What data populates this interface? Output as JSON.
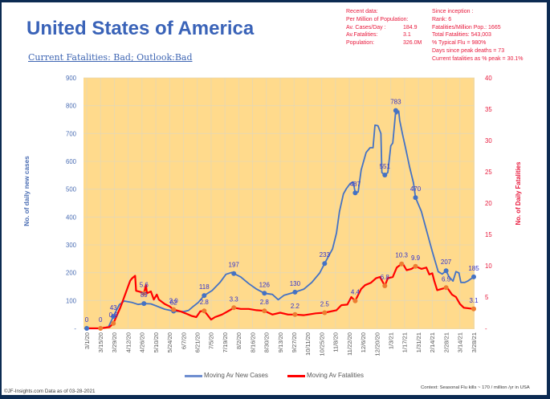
{
  "header": {
    "title": "United States of America",
    "subtitle": "Current Fatalities: Bad; Outlook:Bad"
  },
  "recent_data": {
    "heading": "Recent data:",
    "subheading": "Per Million of Population:",
    "rows": [
      {
        "label": "Av. Cases/Day :",
        "value": "184.9"
      },
      {
        "label": "Av.Fatalities:",
        "value": "3.1"
      },
      {
        "label": "Population:",
        "value": "326.0M"
      }
    ]
  },
  "since_inception": {
    "heading": "Since inception :",
    "lines": [
      "Rank: 6",
      "Fatalities/Million Pop.: 1665",
      "Total Fatalities: 543,003",
      "% Typical Flu = 980%",
      "Days since peak deaths = 73",
      "Current fatalities as % peak = 30.1%"
    ]
  },
  "footer": {
    "source": "©JF-Insights.com  Data as of 03-28-2021",
    "context": "Context: Seasonal Flu kills ~ 170 / million /yr in USA"
  },
  "colors": {
    "frame": "#0c2b52",
    "title": "#3a63b8",
    "info_text": "#e8193c",
    "data_label": "#3333cc"
  },
  "chart_data": {
    "type": "line",
    "title": "",
    "xlabel": "",
    "ylabel": "No. of daily new cases",
    "y2label": "No. of Daily Fatalities",
    "plot_background": "#FFDA8C",
    "grid": true,
    "x_range": [
      "3/1/20",
      "3/28/21"
    ],
    "ylim": [
      0,
      900
    ],
    "y2lim": [
      0,
      40
    ],
    "yticks": [
      0,
      100,
      200,
      300,
      400,
      500,
      600,
      700,
      800,
      900
    ],
    "ytick_labels": [
      "-",
      "100",
      "200",
      "300",
      "400",
      "500",
      "600",
      "700",
      "800",
      "900"
    ],
    "y2ticks": [
      0,
      5,
      10,
      15,
      20,
      25,
      30,
      35,
      40
    ],
    "y2tick_labels": [
      "-",
      "5",
      "10",
      "15",
      "20",
      "25",
      "30",
      "35",
      "40"
    ],
    "xticks": [
      "3/1/20",
      "3/15/20",
      "3/29/20",
      "4/12/20",
      "4/26/20",
      "5/10/20",
      "5/24/20",
      "6/7/20",
      "6/21/20",
      "7/5/20",
      "7/19/20",
      "8/2/20",
      "8/16/20",
      "8/30/20",
      "9/13/20",
      "9/27/20",
      "10/11/20",
      "10/25/20",
      "11/8/20",
      "11/22/20",
      "12/6/20",
      "12/20/20",
      "1/3/21",
      "1/17/21",
      "1/31/21",
      "2/14/21",
      "2/28/21",
      "3/14/21",
      "3/28/21"
    ],
    "legend": {
      "position": "bottom"
    },
    "series": [
      {
        "name": "Moving Av New Cases",
        "axis": "left",
        "color": "#4472C4",
        "marker_color": "#4472C4",
        "x": [
          "3/1/20",
          "3/15/20",
          "3/23/20",
          "3/28/20",
          "4/3/20",
          "4/8/20",
          "4/16/20",
          "4/22/20",
          "4/28/20",
          "5/5/20",
          "5/8/20",
          "5/19/20",
          "5/28/20",
          "6/7/20",
          "6/12/20",
          "6/17/20",
          "6/22/20",
          "6/28/20",
          "7/6/20",
          "7/14/20",
          "7/20/20",
          "7/26/20",
          "7/28/20",
          "8/4/20",
          "8/12/20",
          "8/20/20",
          "8/28/20",
          "9/5/20",
          "9/11/20",
          "9/17/20",
          "9/28/20",
          "10/7/20",
          "10/15/20",
          "10/23/20",
          "10/28/20",
          "11/5/20",
          "11/9/20",
          "11/12/20",
          "11/16/20",
          "11/19/20",
          "11/23/20",
          "11/26/20",
          "11/28/20",
          "12/1/20",
          "12/4/20",
          "12/9/20",
          "12/13/20",
          "12/16/20",
          "12/18/20",
          "12/21/20",
          "12/24/20",
          "12/25/20",
          "12/28/20",
          "12/31/20",
          "1/3/21",
          "1/5/21",
          "1/7/21",
          "1/8/21",
          "1/9/21",
          "1/11/21",
          "1/12/21",
          "1/15/21",
          "1/18/21",
          "1/22/21",
          "1/26/21",
          "1/28/21",
          "2/3/21",
          "2/11/21",
          "2/14/21",
          "2/18/21",
          "2/20/21",
          "2/24/21",
          "2/28/21",
          "3/3/21",
          "3/7/21",
          "3/10/21",
          "3/13/21",
          "3/15/21",
          "3/19/21",
          "3/22/21",
          "3/28/21"
        ],
        "values": [
          0,
          0,
          5,
          43,
          85,
          98,
          93,
          86,
          89,
          88,
          84,
          69,
          62,
          60,
          64,
          79,
          93,
          118,
          136,
          165,
          194,
          201,
          197,
          185,
          161,
          141,
          126,
          122,
          103,
          119,
          130,
          141,
          165,
          199,
          233,
          286,
          343,
          420,
          483,
          502,
          521,
          526,
          487,
          490,
          569,
          632,
          649,
          649,
          730,
          728,
          700,
          560,
          551,
          560,
          656,
          666,
          742,
          783,
          771,
          781,
          747,
          695,
          647,
          580,
          522,
          470,
          420,
          315,
          276,
          228,
          204,
          195,
          207,
          185,
          170,
          204,
          199,
          165,
          165,
          170,
          185
        ],
        "labels": [
          {
            "x": "3/1/20",
            "value": 0,
            "text": "0"
          },
          {
            "x": "3/28/20",
            "value": 43,
            "text": "43"
          },
          {
            "x": "4/28/20",
            "value": 89,
            "text": "89"
          },
          {
            "x": "5/28/20",
            "value": 62,
            "text": "62"
          },
          {
            "x": "6/28/20",
            "value": 118,
            "text": "118"
          },
          {
            "x": "7/28/20",
            "value": 197,
            "text": "197"
          },
          {
            "x": "8/28/20",
            "value": 126,
            "text": "126"
          },
          {
            "x": "9/28/20",
            "value": 130,
            "text": "130"
          },
          {
            "x": "10/28/20",
            "value": 233,
            "text": "233"
          },
          {
            "x": "11/28/20",
            "value": 487,
            "text": "487"
          },
          {
            "x": "12/28/20",
            "value": 551,
            "text": "551"
          },
          {
            "x": "1/8/21",
            "value": 783,
            "text": "783"
          },
          {
            "x": "1/28/21",
            "value": 470,
            "text": "470"
          },
          {
            "x": "2/28/21",
            "value": 207,
            "text": "207"
          },
          {
            "x": "3/28/21",
            "value": 185,
            "text": "185"
          }
        ]
      },
      {
        "name": "Moving Av Fatalities",
        "axis": "right",
        "color": "#FF0000",
        "marker_color": "#ED7D31",
        "x": [
          "3/1/20",
          "3/15/20",
          "3/24/20",
          "3/28/20",
          "4/4/20",
          "4/8/20",
          "4/14/20",
          "4/16/20",
          "4/19/20",
          "4/20/20",
          "4/25/20",
          "4/28/20",
          "4/30/20",
          "5/1/20",
          "5/5/20",
          "5/8/20",
          "5/11/20",
          "5/13/20",
          "5/19/20",
          "5/24/20",
          "5/28/20",
          "6/4/20",
          "6/9/20",
          "6/15/20",
          "6/20/20",
          "6/24/20",
          "6/28/20",
          "7/1/20",
          "7/5/20",
          "7/9/20",
          "7/16/20",
          "7/24/20",
          "7/28/20",
          "8/4/20",
          "8/12/20",
          "8/20/20",
          "8/28/20",
          "9/5/20",
          "9/13/20",
          "9/21/20",
          "9/28/20",
          "10/7/20",
          "10/19/20",
          "10/28/20",
          "11/9/20",
          "11/14/20",
          "11/20/20",
          "11/24/20",
          "11/28/20",
          "12/4/20",
          "12/8/20",
          "12/14/20",
          "12/19/20",
          "12/23/20",
          "12/28/20",
          "12/31/20",
          "1/5/21",
          "1/9/21",
          "1/14/21",
          "1/16/21",
          "1/19/21",
          "1/24/21",
          "1/28/21",
          "2/3/21",
          "2/8/21",
          "2/11/21",
          "2/14/21",
          "2/16/21",
          "2/19/21",
          "2/28/21",
          "3/2/21",
          "3/6/21",
          "3/10/21",
          "3/14/21",
          "3/18/21",
          "3/28/21"
        ],
        "values": [
          0,
          0,
          0.2,
          0.8,
          3.3,
          5.0,
          7.6,
          8.0,
          8.4,
          6.0,
          5.8,
          5.6,
          6.9,
          5.6,
          5.9,
          4.6,
          5.4,
          4.6,
          3.9,
          3.5,
          3.0,
          2.7,
          2.4,
          2.0,
          1.8,
          2.7,
          2.8,
          2.2,
          1.4,
          1.8,
          2.2,
          2.9,
          3.3,
          3.1,
          3.1,
          2.9,
          2.8,
          2.2,
          2.5,
          2.2,
          2.2,
          2.1,
          2.4,
          2.5,
          2.9,
          3.7,
          3.8,
          5.0,
          4.4,
          6.3,
          6.9,
          7.3,
          8.0,
          8.2,
          6.8,
          8.0,
          8.2,
          9.7,
          10.3,
          10.1,
          9.3,
          9.5,
          9.9,
          9.5,
          9.7,
          8.6,
          8.8,
          7.6,
          6.1,
          6.5,
          6.3,
          5.4,
          5.0,
          3.9,
          3.3,
          3.1
        ],
        "labels": [
          {
            "x": "3/15/20",
            "value": 0,
            "text": "0"
          },
          {
            "x": "3/28/20",
            "value": 0.8,
            "text": "0.8"
          },
          {
            "x": "4/28/20",
            "value": 5.6,
            "text": "5.6"
          },
          {
            "x": "5/28/20",
            "value": 3.0,
            "text": "3.0"
          },
          {
            "x": "6/28/20",
            "value": 2.8,
            "text": "2.8"
          },
          {
            "x": "7/28/20",
            "value": 3.3,
            "text": "3.3"
          },
          {
            "x": "8/28/20",
            "value": 2.8,
            "text": "2.8"
          },
          {
            "x": "9/28/20",
            "value": 2.2,
            "text": "2.2"
          },
          {
            "x": "10/28/20",
            "value": 2.5,
            "text": "2.5"
          },
          {
            "x": "11/28/20",
            "value": 4.4,
            "text": "4.4"
          },
          {
            "x": "12/28/20",
            "value": 6.8,
            "text": "6.8"
          },
          {
            "x": "1/14/21",
            "value": 10.3,
            "text": "10.3"
          },
          {
            "x": "1/28/21",
            "value": 9.9,
            "text": "9.9"
          },
          {
            "x": "2/28/21",
            "value": 6.5,
            "text": "6.5"
          },
          {
            "x": "3/28/21",
            "value": 3.1,
            "text": "3.1"
          }
        ]
      }
    ]
  }
}
